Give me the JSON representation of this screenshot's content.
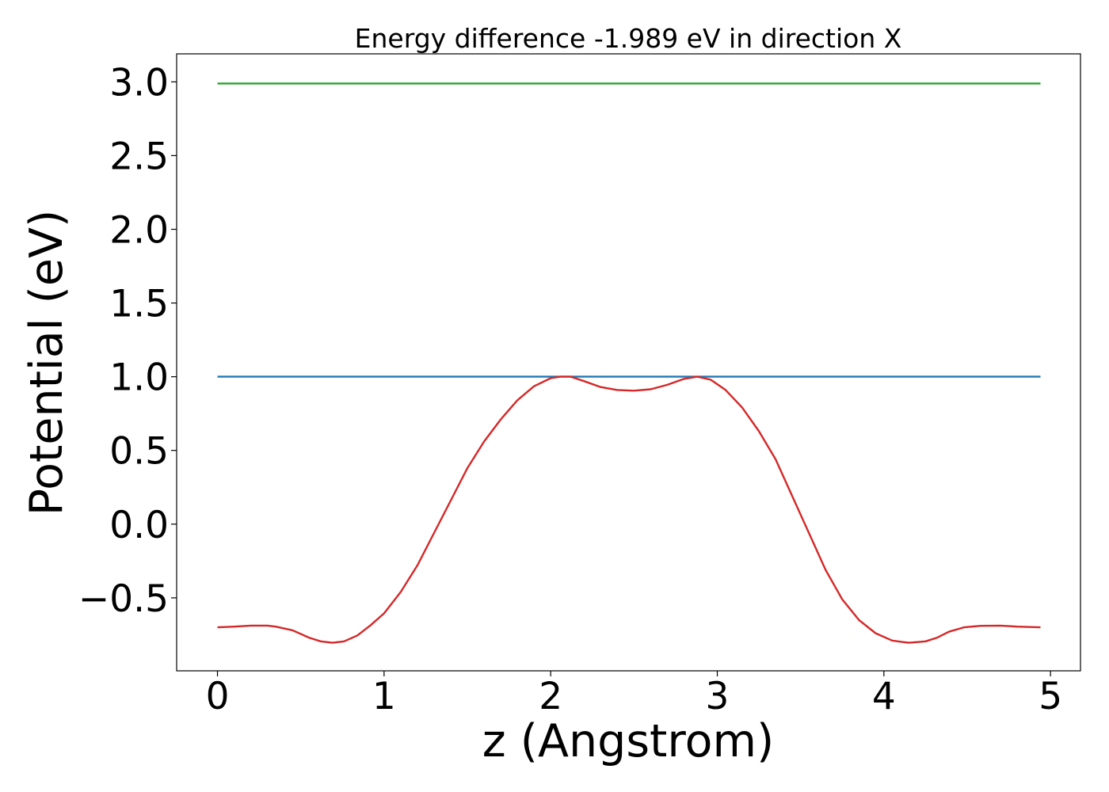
{
  "chart_data": {
    "type": "line",
    "title": "Energy difference -1.989 eV in direction X",
    "xlabel": "z (Angstrom)",
    "ylabel": "Potential (eV)",
    "xlim": [
      -0.245,
      5.18
    ],
    "ylim": [
      -0.995,
      3.19
    ],
    "xticks": [
      0,
      1,
      2,
      3,
      4,
      5
    ],
    "xtick_labels": [
      "0",
      "1",
      "2",
      "3",
      "4",
      "5"
    ],
    "yticks": [
      -0.5,
      0.0,
      0.5,
      1.0,
      1.5,
      2.0,
      2.5,
      3.0
    ],
    "ytick_labels": [
      "−0.5",
      "0.0",
      "0.5",
      "1.0",
      "1.5",
      "2.0",
      "2.5",
      "3.0"
    ],
    "grid": false,
    "series": [
      {
        "color": "#2ca02c",
        "x": [
          0,
          4.94
        ],
        "y": [
          2.989,
          2.989
        ]
      },
      {
        "color": "#1f77b4",
        "x": [
          0,
          4.94
        ],
        "y": [
          1.0,
          1.0
        ]
      },
      {
        "color": "#d62728",
        "x": [
          0,
          0.1,
          0.2,
          0.3,
          0.35,
          0.45,
          0.55,
          0.62,
          0.69,
          0.76,
          0.84,
          0.92,
          1.0,
          1.1,
          1.2,
          1.3,
          1.4,
          1.5,
          1.6,
          1.7,
          1.8,
          1.9,
          2.0,
          2.06,
          2.12,
          2.2,
          2.3,
          2.4,
          2.5,
          2.6,
          2.7,
          2.8,
          2.88,
          2.96,
          3.05,
          3.15,
          3.25,
          3.35,
          3.45,
          3.55,
          3.65,
          3.75,
          3.85,
          3.95,
          4.05,
          4.15,
          4.25,
          4.32,
          4.39,
          4.48,
          4.58,
          4.7,
          4.8,
          4.94
        ],
        "y": [
          -0.7,
          -0.695,
          -0.688,
          -0.688,
          -0.695,
          -0.72,
          -0.77,
          -0.795,
          -0.805,
          -0.795,
          -0.755,
          -0.685,
          -0.605,
          -0.46,
          -0.28,
          -0.06,
          0.16,
          0.38,
          0.56,
          0.71,
          0.84,
          0.935,
          0.99,
          1.0,
          1.0,
          0.97,
          0.93,
          0.91,
          0.905,
          0.915,
          0.945,
          0.985,
          1.0,
          0.98,
          0.91,
          0.79,
          0.63,
          0.44,
          0.19,
          -0.06,
          -0.31,
          -0.51,
          -0.65,
          -0.74,
          -0.79,
          -0.805,
          -0.795,
          -0.77,
          -0.73,
          -0.7,
          -0.69,
          -0.688,
          -0.695,
          -0.7
        ]
      }
    ]
  }
}
